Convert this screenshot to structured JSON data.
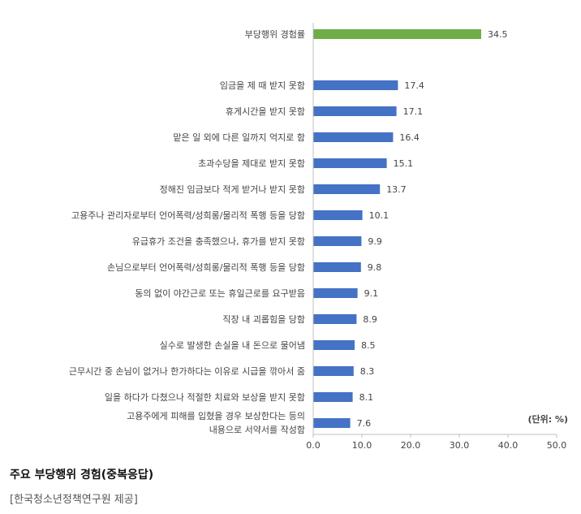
{
  "chart_data": {
    "type": "bar",
    "orientation": "horizontal",
    "categories": [
      "부당행위 경험률",
      "임금을 제 때 받지 못함",
      "휴게시간을 받지 못함",
      "맡은 일 외에 다른 일까지 억지로 함",
      "초과수당을 제대로 받지 못함",
      "정해진 임금보다 적게 받거나 받지 못함",
      "고용주나 관리자로부터 언어폭력/성희롱/물리적 폭행 등을 당함",
      "유급휴가 조건을 충족했으나, 휴가를 받지 못함",
      "손님으로부터 언어폭력/성희롱/물리적 폭행 등을 당함",
      "동의 없이 야간근로 또는 휴일근로를 요구받음",
      "직장 내 괴롭힘을 당함",
      "실수로 발생한 손실을 내 돈으로 물어냄",
      "근무시간 중 손님이 없거나 한가하다는 이유로 시급을 깎아서 줌",
      "일을 하다가 다쳤으나 적절한 치료와 보상을 받지 못함",
      "고용주에게 피해를 입혔을 경우 보상한다는 등의 내용으로 서약서를 작성함"
    ],
    "values": [
      34.5,
      17.4,
      17.1,
      16.4,
      15.1,
      13.7,
      10.1,
      9.9,
      9.8,
      9.1,
      8.9,
      8.5,
      8.3,
      8.1,
      7.6
    ],
    "value_labels": [
      "34.5",
      "17.4",
      "17.1",
      "16.4",
      "15.1",
      "13.7",
      "10.1",
      "9.9",
      "9.8",
      "9.1",
      "8.9",
      "8.5",
      "8.3",
      "8.1",
      "7.6"
    ],
    "highlight_index": 0,
    "colors": {
      "highlight": "#70ad47",
      "bar": "#4472c4",
      "axis": "#bfbfbf",
      "text": "#444444"
    },
    "xlim": [
      0,
      50
    ],
    "xticks": [
      "0.0",
      "10.0",
      "20.0",
      "30.0",
      "40.0",
      "50.0"
    ],
    "unit_note": "(단위: %)",
    "grid": false
  },
  "caption": {
    "title": "주요 부당행위 경험(중복응답)",
    "source": "[한국청소년정책연구원 제공]"
  }
}
